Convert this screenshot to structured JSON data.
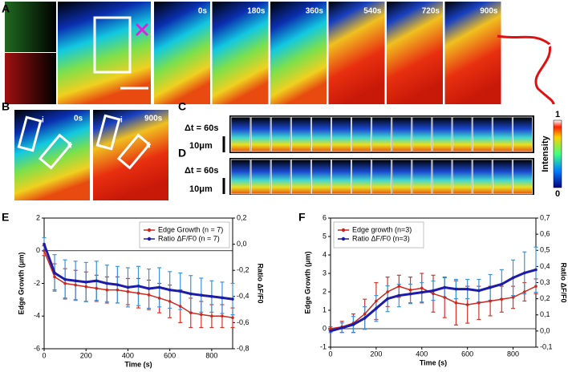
{
  "figure": {
    "panel_labels": [
      "A",
      "B",
      "C",
      "D",
      "E",
      "F"
    ],
    "a_times": [
      "0s",
      "180s",
      "360s",
      "540s",
      "720s",
      "900s"
    ],
    "b_times": [
      "0s",
      "900s"
    ],
    "roi_labels": [
      "i",
      "ii"
    ],
    "dt_label": "Δt = 60s",
    "scale_label": "10μm",
    "colorbar": {
      "max": 1,
      "min": 0,
      "label": "Intensity"
    }
  },
  "chart_data": [
    {
      "type": "line",
      "xlabel": "Time (s)",
      "ylabel": "Edge Growth (μm)",
      "y2label": "Ratio ΔF/F0",
      "legend": "upper right",
      "x": [
        0,
        50,
        100,
        150,
        200,
        250,
        300,
        350,
        400,
        450,
        500,
        550,
        600,
        650,
        700,
        750,
        800,
        850,
        900
      ],
      "xlim": [
        0,
        900
      ],
      "xticks": [
        0,
        200,
        400,
        600,
        800
      ],
      "ylim": [
        -6,
        2
      ],
      "yticks": [
        -6,
        -4,
        -2,
        0,
        2
      ],
      "y2lim": [
        -0.8,
        0.2
      ],
      "y2ticks": [
        {
          "value": -0.8,
          "label": "-0,8"
        },
        {
          "value": -0.6,
          "label": "-0,6"
        },
        {
          "value": -0.4,
          "label": "-0,4"
        },
        {
          "value": -0.2,
          "label": "-0,2"
        },
        {
          "value": 0,
          "label": "0,0"
        },
        {
          "value": 0.2,
          "label": "0,2"
        }
      ],
      "series": [
        {
          "name": "Edge Growth (n = 7)",
          "color": "#c8281e",
          "error_color": "#d8332a",
          "values": [
            0,
            -1.6,
            -2.0,
            -2.1,
            -2.2,
            -2.3,
            -2.4,
            -2.4,
            -2.5,
            -2.6,
            -2.7,
            -2.9,
            -3.1,
            -3.4,
            -3.8,
            -3.9,
            -4.0,
            -4.0,
            -4.1
          ],
          "errors": [
            0.3,
            0.8,
            0.9,
            0.9,
            0.9,
            0.8,
            0.8,
            0.8,
            0.8,
            0.9,
            0.9,
            0.9,
            1.0,
            1.0,
            0.9,
            0.8,
            0.7,
            0.7,
            0.6
          ]
        },
        {
          "name": "Ratio ΔF/F0 (n = 7)",
          "color": "#1c1ca8",
          "error_color": "#3d93dc",
          "axis": "y2",
          "values": [
            0,
            -0.22,
            -0.27,
            -0.28,
            -0.29,
            -0.28,
            -0.3,
            -0.31,
            -0.33,
            -0.32,
            -0.34,
            -0.33,
            -0.35,
            -0.36,
            -0.38,
            -0.39,
            -0.4,
            -0.41,
            -0.42
          ],
          "errors": [
            0.05,
            0.14,
            0.15,
            0.15,
            0.15,
            0.15,
            0.14,
            0.14,
            0.15,
            0.15,
            0.15,
            0.15,
            0.14,
            0.14,
            0.14,
            0.13,
            0.12,
            0.12,
            0.12
          ]
        }
      ]
    },
    {
      "type": "line",
      "xlabel": "Time (s)",
      "ylabel": "Edge Growth (μm)",
      "y2label": "Ratio ΔF/F0",
      "legend": "upper left",
      "x": [
        0,
        50,
        100,
        150,
        200,
        250,
        300,
        350,
        400,
        450,
        500,
        550,
        600,
        650,
        700,
        750,
        800,
        850,
        900
      ],
      "xlim": [
        0,
        900
      ],
      "xticks": [
        0,
        200,
        400,
        600,
        800
      ],
      "ylim": [
        -1,
        6
      ],
      "yticks": [
        -1,
        0,
        1,
        2,
        3,
        4,
        5,
        6
      ],
      "y2lim": [
        -0.1,
        0.7
      ],
      "y2ticks": [
        {
          "value": -0.1,
          "label": "-0,1"
        },
        {
          "value": 0,
          "label": "0,0"
        },
        {
          "value": 0.1,
          "label": "0,1"
        },
        {
          "value": 0.2,
          "label": "0,2"
        },
        {
          "value": 0.3,
          "label": "0,3"
        },
        {
          "value": 0.4,
          "label": "0,4"
        },
        {
          "value": 0.5,
          "label": "0,5"
        },
        {
          "value": 0.6,
          "label": "0,6"
        },
        {
          "value": 0.7,
          "label": "0,7"
        }
      ],
      "series": [
        {
          "name": "Edge growth (n=3)",
          "color": "#c8281e",
          "error_color": "#d8332a",
          "values": [
            0,
            0.1,
            0.3,
            0.8,
            1.5,
            2.0,
            2.3,
            2.1,
            2.2,
            1.9,
            1.7,
            1.4,
            1.3,
            1.4,
            1.5,
            1.6,
            1.7,
            2.0,
            2.3
          ],
          "errors": [
            0.1,
            0.3,
            0.5,
            0.8,
            1.0,
            0.8,
            0.6,
            0.7,
            0.8,
            1.0,
            1.1,
            1.2,
            1.0,
            0.9,
            0.8,
            0.7,
            0.6,
            0.5,
            0.4
          ]
        },
        {
          "name": "Ratio ΔF/F0 (n=3)",
          "color": "#1c1ca8",
          "error_color": "#3d93dc",
          "axis": "y2",
          "values": [
            0,
            0.02,
            0.04,
            0.08,
            0.14,
            0.2,
            0.22,
            0.23,
            0.24,
            0.25,
            0.27,
            0.26,
            0.26,
            0.25,
            0.27,
            0.29,
            0.33,
            0.36,
            0.38
          ],
          "errors": [
            0.01,
            0.03,
            0.05,
            0.07,
            0.08,
            0.08,
            0.07,
            0.06,
            0.06,
            0.06,
            0.06,
            0.06,
            0.06,
            0.07,
            0.08,
            0.09,
            0.11,
            0.13,
            0.14
          ]
        }
      ]
    }
  ]
}
